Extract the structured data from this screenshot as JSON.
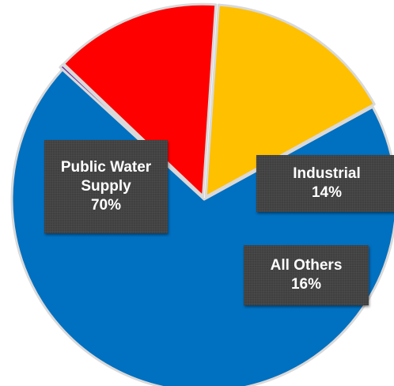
{
  "chart_data": {
    "type": "pie",
    "slices": [
      {
        "label": "Public Water Supply",
        "value": 70,
        "display": [
          "Public Water",
          "Supply",
          "70%"
        ],
        "color": "#0070C0",
        "exploded": false
      },
      {
        "label": "",
        "value": 0.3,
        "display": [],
        "color": "#7030A0",
        "exploded": true
      },
      {
        "label": "Industrial",
        "value": 14,
        "display": [
          "Industrial",
          "14%"
        ],
        "color": "#FF0000",
        "exploded": true
      },
      {
        "label": "All Others",
        "value": 16,
        "display": [
          "All Others",
          "16%"
        ],
        "color": "#FFC000",
        "exploded": true
      }
    ],
    "legend": "none",
    "data_labels": "callout boxes"
  }
}
